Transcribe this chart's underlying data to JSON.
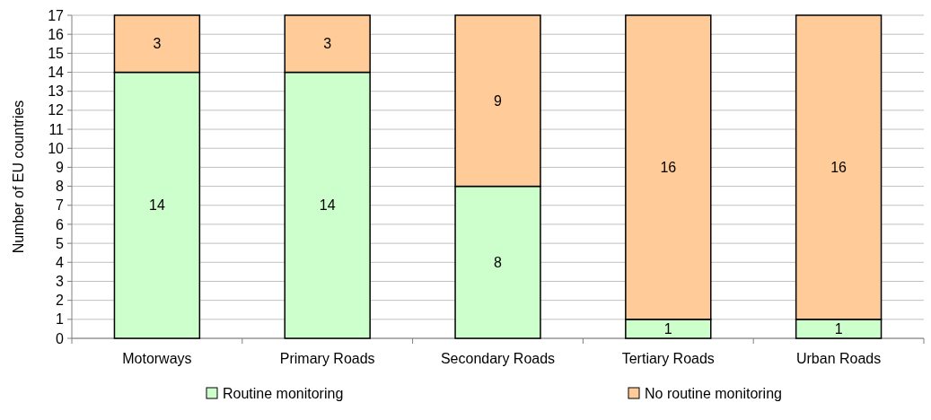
{
  "chart_data": {
    "type": "bar",
    "stacked": true,
    "ylabel": "Number of EU countries",
    "categories": [
      "Motorways",
      "Primary Roads",
      "Secondary Roads",
      "Tertiary Roads",
      "Urban Roads"
    ],
    "series": [
      {
        "name": "Routine monitoring",
        "color": "#ccffcc",
        "values": [
          14,
          14,
          8,
          1,
          1
        ]
      },
      {
        "name": "No routine monitoring",
        "color": "#ffcc99",
        "values": [
          3,
          3,
          9,
          16,
          16
        ]
      }
    ],
    "ylim": [
      0,
      17
    ],
    "yticks": [
      0,
      1,
      2,
      3,
      4,
      5,
      6,
      7,
      8,
      9,
      10,
      11,
      12,
      13,
      14,
      15,
      16,
      17
    ],
    "grid": "y",
    "data_labels": true,
    "legend": "bottom"
  }
}
